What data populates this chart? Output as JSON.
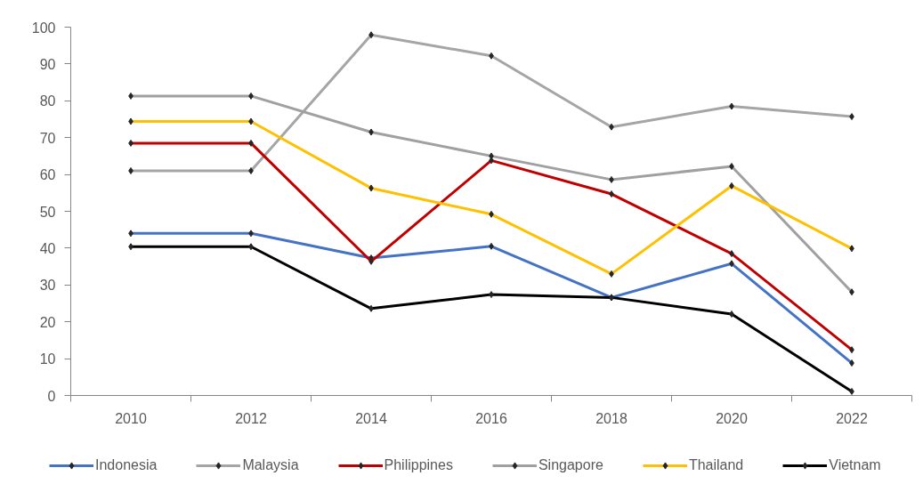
{
  "chart_data": {
    "type": "line",
    "categories": [
      "2010",
      "2012",
      "2014",
      "2016",
      "2018",
      "2020",
      "2022"
    ],
    "ylim": [
      0,
      100
    ],
    "yticks": [
      0,
      10,
      20,
      30,
      40,
      50,
      60,
      70,
      80,
      90,
      100
    ],
    "grid": false,
    "legend": "bottom",
    "marker": "diamond",
    "line_style": "solid",
    "series": [
      {
        "name": "Indonesia",
        "color": "#4472c4",
        "values": [
          44.0,
          44.0,
          37.3,
          40.5,
          26.6,
          35.8,
          8.8
        ]
      },
      {
        "name": "Malaysia",
        "color": "#a5a5a5",
        "values": [
          61.0,
          61.0,
          97.9,
          92.2,
          72.9,
          78.5,
          75.7
        ]
      },
      {
        "name": "Philippines",
        "color": "#c00000",
        "values": [
          68.5,
          68.5,
          36.4,
          63.8,
          54.7,
          38.5,
          12.4
        ]
      },
      {
        "name": "Singapore",
        "color": "#a0a0a0",
        "values": [
          81.3,
          81.3,
          71.5,
          65.0,
          58.6,
          62.2,
          28.1
        ]
      },
      {
        "name": "Thailand",
        "color": "#ffc000",
        "values": [
          74.4,
          74.4,
          56.3,
          49.2,
          33.0,
          56.9,
          39.9
        ]
      },
      {
        "name": "Vietnam",
        "color": "#000000",
        "values": [
          40.4,
          40.4,
          23.6,
          27.4,
          26.6,
          22.1,
          1.1
        ]
      }
    ]
  }
}
